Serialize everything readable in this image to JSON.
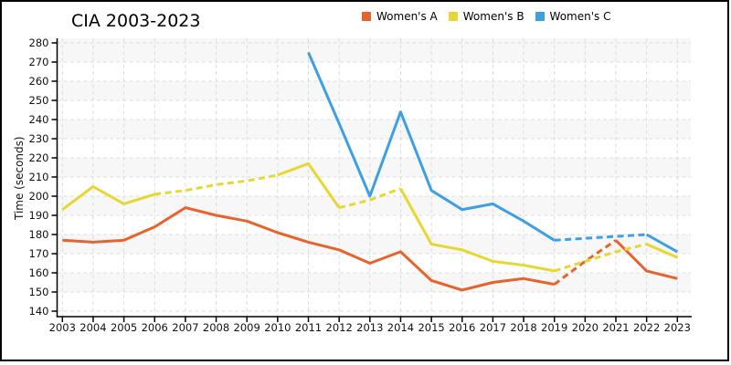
{
  "chart_data": {
    "type": "line",
    "title": "CIA 2003-2023",
    "ylabel": "Time (seconds)",
    "xlabel": "",
    "x": [
      2003,
      2004,
      2005,
      2006,
      2007,
      2008,
      2009,
      2010,
      2011,
      2012,
      2013,
      2014,
      2015,
      2016,
      2017,
      2018,
      2019,
      2020,
      2021,
      2022,
      2023
    ],
    "ylim": [
      140,
      280
    ],
    "ytick_step": 10,
    "grid": "dashed-light-gray",
    "plot_background": "alternating horizontal bands",
    "band_color": "#f7f7f7",
    "grid_color": "#dcdcdc",
    "legend_position": "top-center",
    "series": [
      {
        "name": "Women's A",
        "color": "#e7632c",
        "values": [
          177,
          176,
          177,
          184,
          194,
          190,
          187,
          181,
          176,
          172,
          165,
          171,
          156,
          151,
          155,
          157,
          154,
          166,
          177,
          161,
          157
        ],
        "dashed_ranges": [
          [
            2019,
            2021
          ]
        ]
      },
      {
        "name": "Women's B",
        "color": "#e6d731",
        "values": [
          193,
          205,
          196,
          201,
          203,
          206,
          208,
          211,
          217,
          194,
          198,
          204,
          175,
          172,
          166,
          164,
          161,
          166,
          171,
          175,
          168
        ],
        "dashed_ranges": [
          [
            2006,
            2010
          ],
          [
            2012,
            2014
          ],
          [
            2019,
            2022
          ]
        ]
      },
      {
        "name": "Women's C",
        "color": "#3f9fe0",
        "values": [
          null,
          null,
          null,
          null,
          null,
          null,
          null,
          null,
          275,
          238,
          200,
          244,
          203,
          193,
          196,
          187,
          177,
          178,
          179,
          180,
          171
        ],
        "dashed_ranges": [
          [
            2019,
            2022
          ]
        ]
      }
    ]
  }
}
